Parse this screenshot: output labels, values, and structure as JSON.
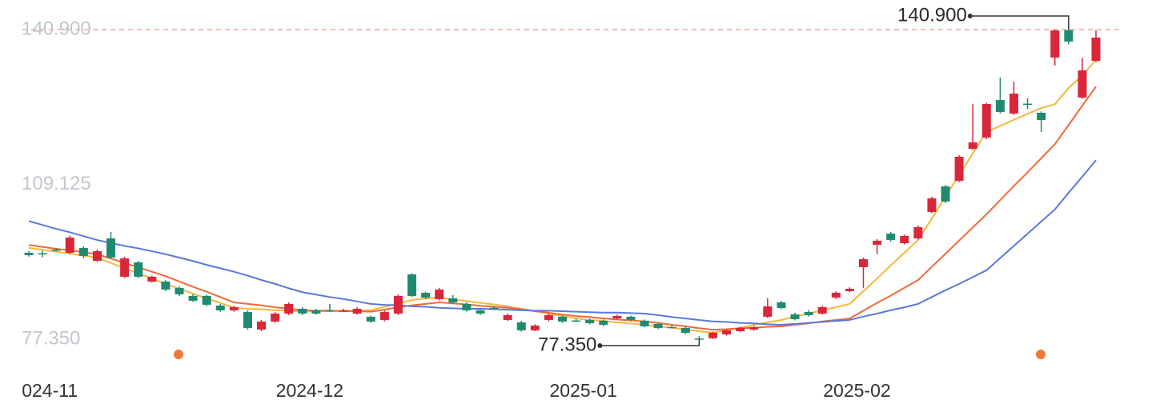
{
  "chart_data": {
    "type": "candlestick",
    "up_color": "#d9263a",
    "down_color": "#1f8a70",
    "max_line_color": "#f2a5a5",
    "max_label": "140.900",
    "min_label": "77.350",
    "ylim": [
      77.35,
      140.9
    ],
    "yticks": [
      {
        "value": 77.35,
        "label": "77.350"
      },
      {
        "value": 109.125,
        "label": "109.125"
      },
      {
        "value": 140.9,
        "label": "140.900"
      }
    ],
    "categories": [
      null,
      null,
      "024-11",
      null,
      null,
      null,
      null,
      null,
      null,
      null,
      null,
      null,
      null,
      null,
      null,
      null,
      null,
      null,
      null,
      null,
      null,
      "2024-12",
      null,
      null,
      null,
      null,
      null,
      null,
      null,
      null,
      null,
      null,
      null,
      null,
      null,
      null,
      null,
      null,
      null,
      null,
      null,
      "2025-01",
      null,
      null,
      null,
      null,
      null,
      null,
      null,
      null,
      null,
      null,
      null,
      null,
      null,
      null,
      null,
      null,
      null,
      null,
      null,
      "2025-02",
      null,
      null,
      null,
      null,
      null,
      null,
      null,
      null,
      null,
      null,
      null,
      null,
      null,
      null,
      null,
      null,
      null
    ],
    "open": [
      95.09,
      95.0,
      95.75,
      95.09,
      96.08,
      93.45,
      98.05,
      90.17,
      93.12,
      89.18,
      89.18,
      87.87,
      86.23,
      86.23,
      84.26,
      83.27,
      82.94,
      79.33,
      80.97,
      82.61,
      83.6,
      83.27,
      83.3,
      83.2,
      82.61,
      81.96,
      81.3,
      82.61,
      90.66,
      86.88,
      85.57,
      85.73,
      84.58,
      83.27,
      83.8,
      81.3,
      80.81,
      79.17,
      81.3,
      81.96,
      81.2,
      81.3,
      81.14,
      81.63,
      81.96,
      81.14,
      80.48,
      79.85,
      79.66,
      77.5,
      77.55,
      78.34,
      79.0,
      79.33,
      81.96,
      84.91,
      82.45,
      82.94,
      82.61,
      85.9,
      87.21,
      92.14,
      96.73,
      99.03,
      97.06,
      98.05,
      103.47,
      108.72,
      109.87,
      116.44,
      118.74,
      126.45,
      123.66,
      125.7,
      123.83,
      135.16,
      140.8,
      126.95,
      134.5
    ],
    "close": [
      94.6,
      94.76,
      95.7,
      98.21,
      94.44,
      95.42,
      94.11,
      93.94,
      90.17,
      90.17,
      87.54,
      86.56,
      85.24,
      84.42,
      83.27,
      83.93,
      79.66,
      80.97,
      82.61,
      84.58,
      82.61,
      82.61,
      83.27,
      83.27,
      83.6,
      80.97,
      82.94,
      86.23,
      86.23,
      85.9,
      87.54,
      84.91,
      83.27,
      82.61,
      83.76,
      82.29,
      79.17,
      80.15,
      82.29,
      80.97,
      81.14,
      80.64,
      80.31,
      82.12,
      81.3,
      79.99,
      79.66,
      79.82,
      78.67,
      77.45,
      78.67,
      79.17,
      79.66,
      79.82,
      84.09,
      83.76,
      81.46,
      82.29,
      83.93,
      86.88,
      87.7,
      93.78,
      97.56,
      97.72,
      98.54,
      100.35,
      106.26,
      105.6,
      114.8,
      117.75,
      125.63,
      123.99,
      127.77,
      125.63,
      122.35,
      140.74,
      138.44,
      132.53,
      139.26
    ],
    "high": [
      95.4,
      95.5,
      96.1,
      98.6,
      96.4,
      95.8,
      99.36,
      94.3,
      93.4,
      90.4,
      89.5,
      88.2,
      86.6,
      86.5,
      84.6,
      84.2,
      83.3,
      81.3,
      82.9,
      84.9,
      83.9,
      83.6,
      84.6,
      83.6,
      83.9,
      82.2,
      83.2,
      86.5,
      90.9,
      87.1,
      87.9,
      86.4,
      84.9,
      83.5,
      84.1,
      82.6,
      81.1,
      80.4,
      82.6,
      82.2,
      81.5,
      81.6,
      81.4,
      82.4,
      82.2,
      81.4,
      80.7,
      80.1,
      79.9,
      78.0,
      78.9,
      79.4,
      79.9,
      80.1,
      85.8,
      85.2,
      82.8,
      83.3,
      84.2,
      87.2,
      88.0,
      94.1,
      97.9,
      99.4,
      98.8,
      100.7,
      106.6,
      109.0,
      115.1,
      125.6,
      125.9,
      131.05,
      130.23,
      126.8,
      124.1,
      140.85,
      140.9,
      135.1,
      140.8
    ],
    "low": [
      94.3,
      94.2,
      95.4,
      94.9,
      94.0,
      93.2,
      93.9,
      89.9,
      89.9,
      89.0,
      87.2,
      86.2,
      85.0,
      84.1,
      83.0,
      83.0,
      79.3,
      79.0,
      80.7,
      82.3,
      82.3,
      82.4,
      82.9,
      82.9,
      82.4,
      80.7,
      81.0,
      82.3,
      86.0,
      85.6,
      85.3,
      84.6,
      83.0,
      82.3,
      83.5,
      81.1,
      78.9,
      79.0,
      81.0,
      80.7,
      80.9,
      80.4,
      80.0,
      81.4,
      81.0,
      79.8,
      79.4,
      79.6,
      78.4,
      77.35,
      77.4,
      78.1,
      78.8,
      79.1,
      81.7,
      83.5,
      81.2,
      82.0,
      82.4,
      85.6,
      87.0,
      87.9,
      94.8,
      97.4,
      96.8,
      97.8,
      103.2,
      105.3,
      109.6,
      116.2,
      118.4,
      123.7,
      123.4,
      124.6,
      119.89,
      133.52,
      137.9,
      126.7,
      134.2
    ],
    "lines": [
      {
        "color": "#f6b73c",
        "values": [
          96.1,
          95.7,
          95.3,
          94.9,
          94.5,
          94.1,
          93.0,
          91.9,
          90.9,
          89.8,
          88.7,
          87.7,
          86.7,
          85.7,
          84.8,
          83.8,
          83.6,
          83.5,
          83.3,
          83.2,
          83.0,
          83.1,
          83.1,
          83.2,
          83.2,
          83.3,
          84.0,
          84.7,
          85.4,
          85.7,
          85.9,
          85.5,
          85.2,
          84.8,
          84.5,
          84.1,
          83.6,
          83.1,
          82.6,
          82.1,
          81.6,
          81.3,
          81.1,
          80.8,
          80.6,
          80.3,
          80.0,
          79.7,
          79.3,
          79.0,
          78.7,
          79.2,
          79.7,
          80.3,
          80.8,
          81.3,
          82.0,
          82.6,
          83.3,
          83.9,
          84.6,
          87.2,
          89.8,
          92.5,
          95.1,
          97.7,
          102.1,
          106.6,
          111.0,
          115.5,
          119.9,
          121.1,
          122.4,
          123.6,
          124.8,
          125.6,
          128.9,
          131.5,
          134.7
        ]
      },
      {
        "color": "#ee6a3a",
        "values": [
          96.7,
          96.3,
          95.9,
          95.6,
          95.2,
          94.8,
          93.9,
          93.0,
          92.1,
          91.2,
          90.3,
          89.2,
          88.1,
          87.1,
          86.0,
          84.9,
          84.6,
          84.3,
          83.9,
          83.6,
          83.3,
          83.2,
          83.2,
          83.1,
          83.1,
          83.0,
          83.4,
          83.9,
          84.3,
          84.6,
          84.9,
          84.7,
          84.5,
          84.2,
          84.0,
          83.8,
          83.5,
          83.1,
          82.8,
          82.4,
          82.1,
          81.9,
          81.6,
          81.4,
          81.2,
          81.0,
          80.7,
          80.3,
          80.0,
          79.6,
          79.3,
          79.4,
          79.6,
          79.7,
          79.9,
          80.0,
          80.3,
          80.6,
          81.0,
          81.3,
          81.6,
          83.2,
          84.8,
          86.3,
          87.9,
          89.5,
          92.2,
          94.9,
          97.6,
          100.3,
          103.0,
          105.9,
          108.8,
          111.6,
          114.5,
          117.4,
          121.3,
          125.3,
          129.2
        ]
      },
      {
        "color": "#5b78dc",
        "values": [
          101.6,
          100.8,
          100.0,
          99.3,
          98.5,
          97.7,
          97.1,
          96.5,
          96.0,
          95.4,
          94.8,
          94.1,
          93.4,
          92.6,
          91.9,
          91.2,
          90.4,
          89.5,
          88.7,
          87.8,
          87.0,
          86.5,
          86.0,
          85.6,
          85.1,
          84.6,
          84.4,
          84.3,
          84.1,
          84.0,
          83.8,
          83.7,
          83.6,
          83.6,
          83.5,
          83.4,
          83.3,
          83.2,
          83.2,
          83.1,
          83.0,
          82.9,
          82.8,
          82.8,
          82.7,
          82.6,
          82.3,
          81.9,
          81.6,
          81.3,
          81.0,
          80.9,
          80.7,
          80.6,
          80.4,
          80.3,
          80.5,
          80.7,
          80.9,
          81.1,
          81.3,
          82.0,
          82.6,
          83.3,
          83.9,
          84.6,
          86.0,
          87.4,
          88.7,
          90.1,
          91.5,
          94.0,
          96.5,
          99.0,
          101.5,
          104.0,
          107.4,
          110.7,
          114.1
        ]
      }
    ]
  }
}
